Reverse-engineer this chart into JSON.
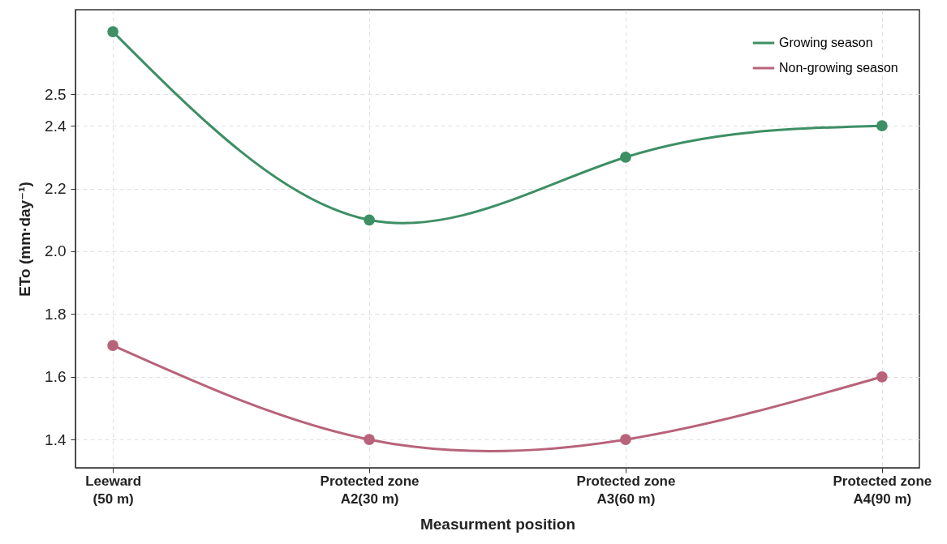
{
  "chart_data": {
    "type": "line",
    "xlabel": "Measurment position",
    "ylabel": "ETo (mm·day⁻¹)",
    "categories": [
      "Leeward\n(50 m)",
      "Protected zone\nA2(30 m)",
      "Protected zone\nA3(60 m)",
      "Protected zone\nA4(90 m)"
    ],
    "series": [
      {
        "name": "Growing season",
        "color": "#3d8f64",
        "values": [
          2.7,
          2.1,
          2.3,
          2.4
        ]
      },
      {
        "name": "Non-growing season",
        "color": "#b8637a",
        "values": [
          1.7,
          1.4,
          1.4,
          1.6
        ]
      }
    ],
    "ylim": [
      1.31,
      2.77
    ],
    "yticks": [
      1.4,
      1.6,
      1.8,
      {
        "value": 2,
        "label": "2.0"
      },
      2.2,
      2.4,
      2.5
    ],
    "grid": true,
    "legend": "top right",
    "marker": "circle",
    "line_style": "solid"
  }
}
